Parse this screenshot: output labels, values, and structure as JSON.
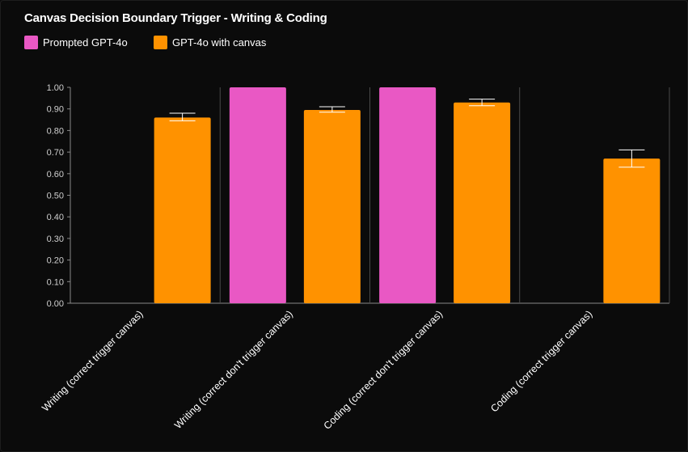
{
  "chart_data": {
    "type": "bar",
    "title": "Canvas Decision Boundary Trigger - Writing & Coding",
    "categories": [
      "Writing (correct trigger canvas)",
      "Writing (correct don't trigger canvas)",
      "Coding (correct don't trigger canvas)",
      "Coding (correct trigger canvas)"
    ],
    "series": [
      {
        "name": "Prompted GPT-4o",
        "color": "#e958c4",
        "values": [
          null,
          1.0,
          1.0,
          null
        ],
        "error": [
          null,
          null,
          null,
          null
        ]
      },
      {
        "name": "GPT-4o with canvas",
        "color": "#ff9200",
        "values": [
          0.86,
          0.895,
          0.93,
          0.67
        ],
        "error": [
          [
            0.845,
            0.88
          ],
          [
            0.885,
            0.91
          ],
          [
            0.915,
            0.945
          ],
          [
            0.63,
            0.71
          ]
        ]
      }
    ],
    "yticks": [
      "0.00",
      "0.10",
      "0.20",
      "0.30",
      "0.40",
      "0.50",
      "0.60",
      "0.70",
      "0.80",
      "0.90",
      "1.00"
    ],
    "ylim": [
      0,
      1.0
    ],
    "legend_position": "top-left",
    "grid": false
  }
}
